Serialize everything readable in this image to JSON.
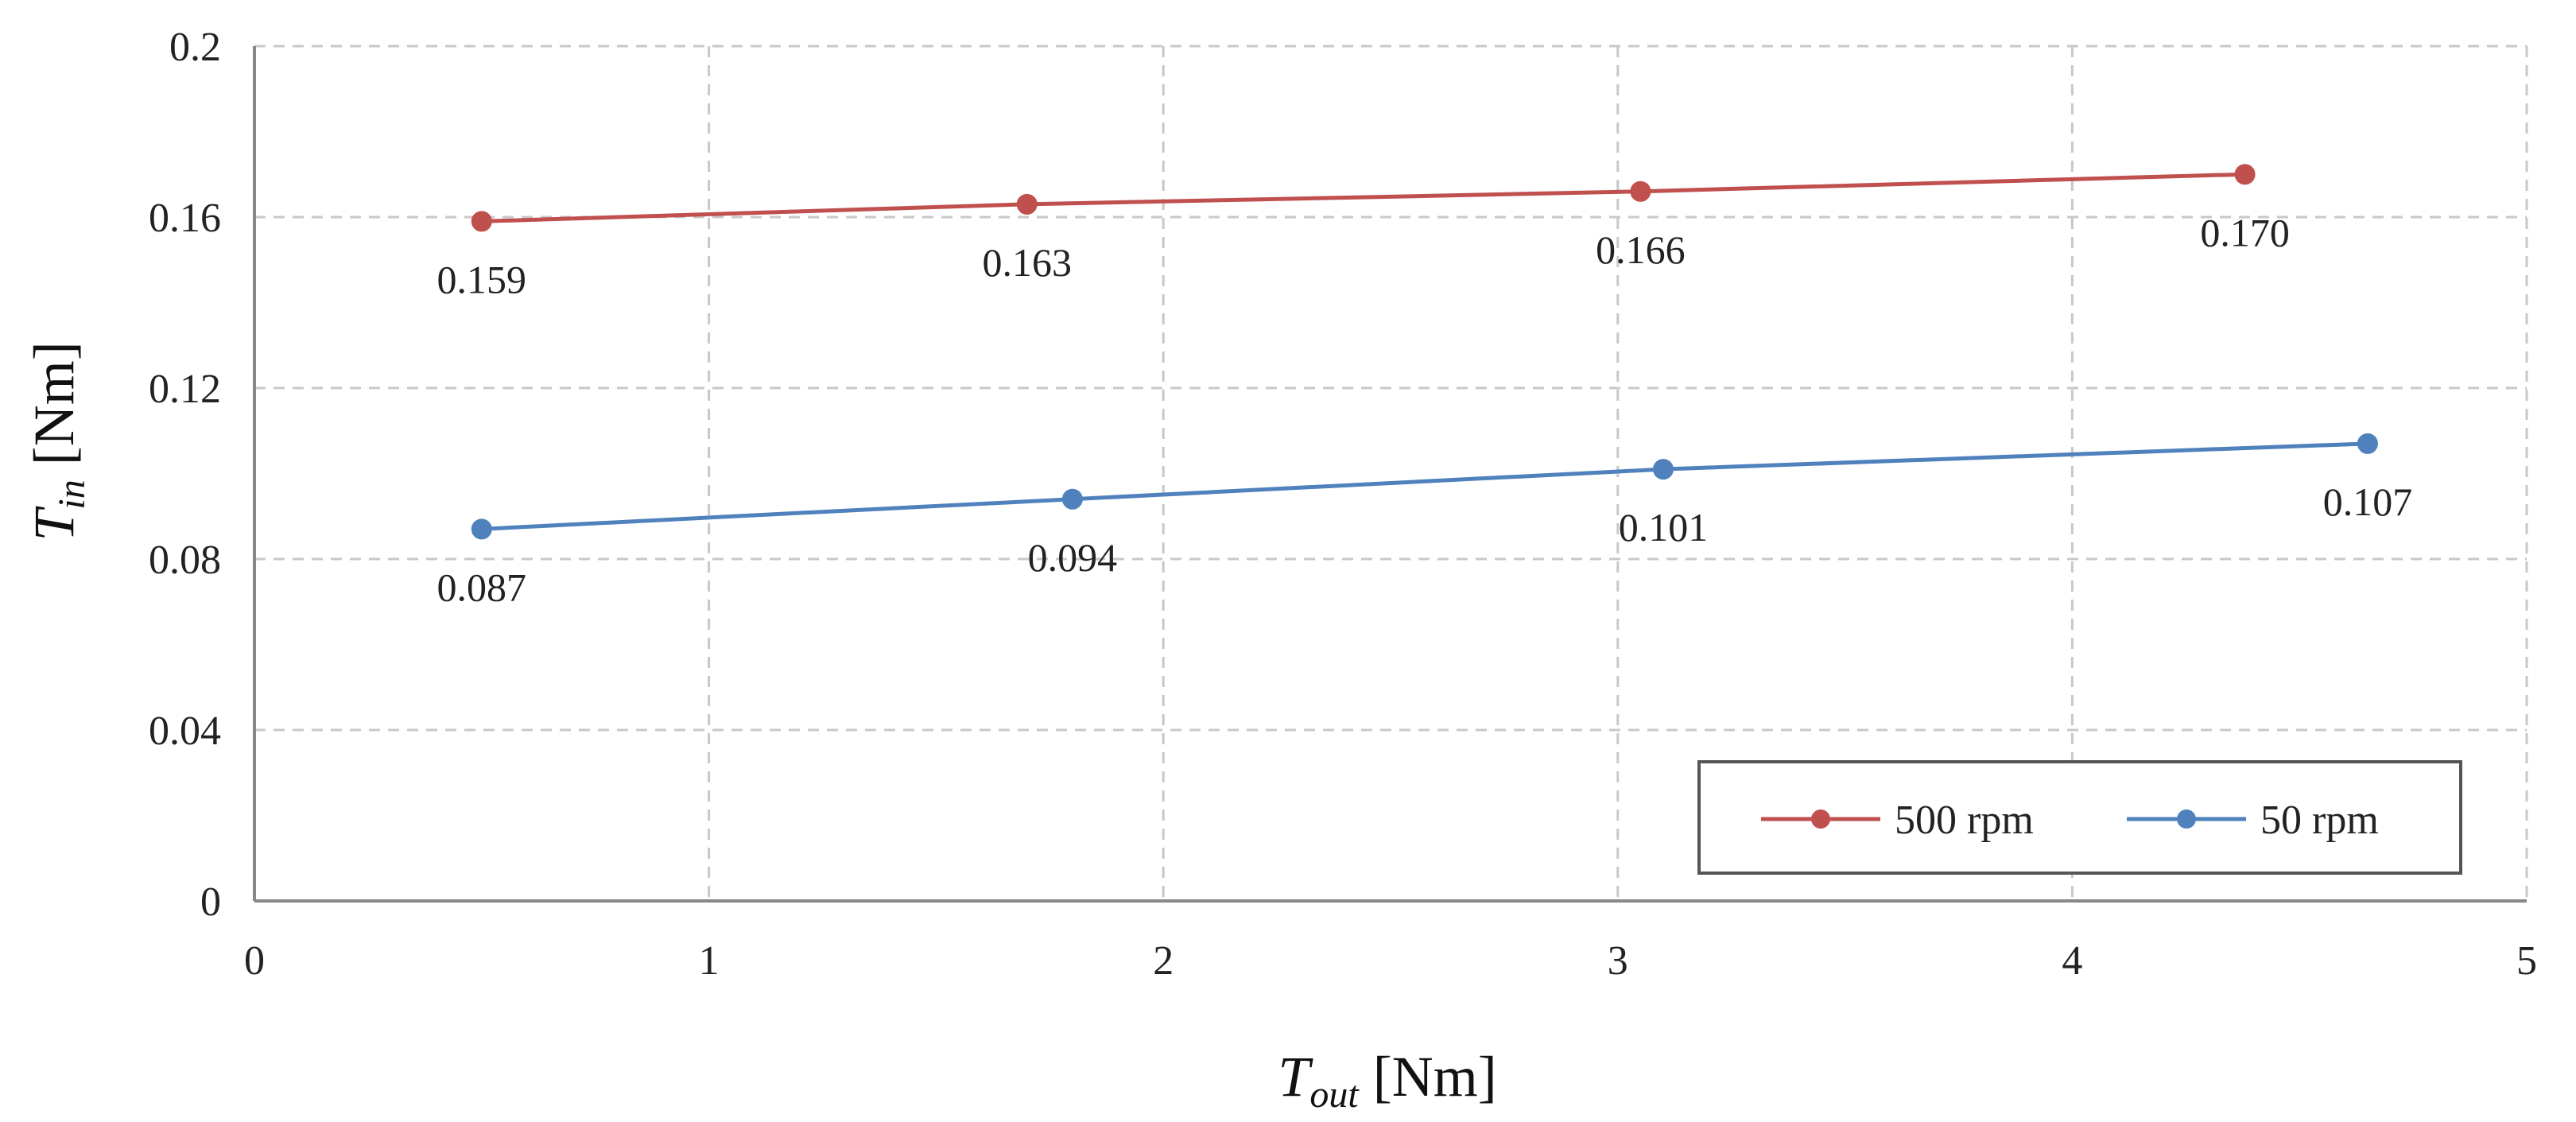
{
  "chart_data": {
    "type": "line",
    "title": "",
    "xlabel": {
      "main": "T",
      "sub": "out",
      "unit": " [Nm]"
    },
    "ylabel": {
      "main": "T",
      "sub": "in",
      "unit": " [Nm]"
    },
    "xlim": [
      0,
      5
    ],
    "ylim": [
      0,
      0.2
    ],
    "xticks": [
      "0",
      "1",
      "2",
      "3",
      "4",
      "5"
    ],
    "yticks": [
      "0",
      "0.04",
      "0.08",
      "0.12",
      "0.16",
      "0.2"
    ],
    "grid": true,
    "legend_position": "bottom-right",
    "series": [
      {
        "name": "500 rpm",
        "color": "#c0504d",
        "x": [
          0.5,
          1.7,
          3.05,
          4.38
        ],
        "y": [
          0.159,
          0.163,
          0.166,
          0.17
        ],
        "labels": [
          "0.159",
          "0.163",
          "0.166",
          "0.170"
        ]
      },
      {
        "name": "50 rpm",
        "color": "#4f81bd",
        "x": [
          0.5,
          1.8,
          3.1,
          4.65
        ],
        "y": [
          0.087,
          0.094,
          0.101,
          0.107
        ],
        "labels": [
          "0.087",
          "0.094",
          "0.101",
          "0.107"
        ]
      }
    ]
  }
}
